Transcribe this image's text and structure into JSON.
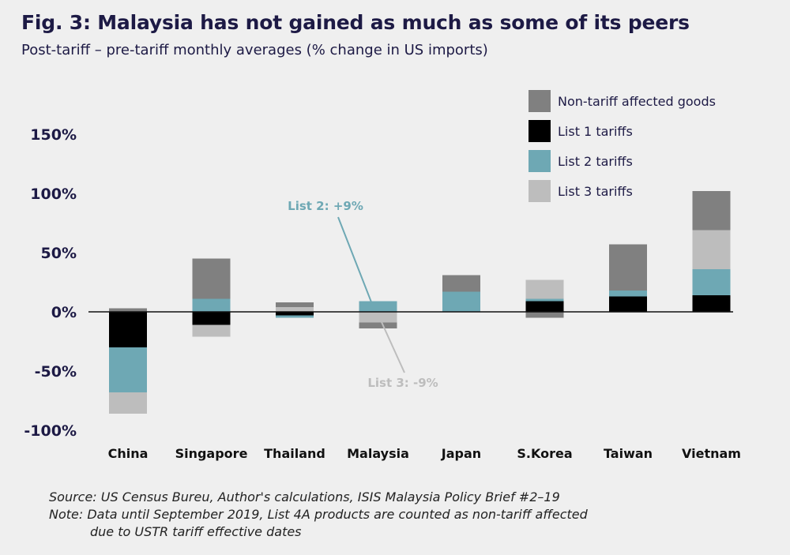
{
  "title": "Fig. 3: Malaysia has not gained as much as some of its peers",
  "subtitle": "Post-tariff – pre-tariff monthly averages (% change in US imports)",
  "chart_data": {
    "type": "bar",
    "stacked": true,
    "categories": [
      "China",
      "Singapore",
      "Thailand",
      "Malaysia",
      "Japan",
      "S.Korea",
      "Taiwan",
      "Vietnam"
    ],
    "series": [
      {
        "name": "Non-tariff affected goods",
        "color": "#808080",
        "values": [
          3,
          34,
          4,
          -5,
          14,
          -5,
          39,
          33
        ]
      },
      {
        "name": "List 1 tariffs",
        "color": "#000000",
        "values": [
          -30,
          -11,
          -3,
          0,
          0,
          9,
          13,
          14
        ]
      },
      {
        "name": "List 2 tariffs",
        "color": "#6ea8b4",
        "values": [
          -38,
          11,
          -2,
          9,
          17,
          2,
          5,
          22
        ]
      },
      {
        "name": "List 3 tariffs",
        "color": "#bdbdbd",
        "values": [
          -18,
          -10,
          4,
          -9,
          0,
          16,
          0,
          33
        ]
      }
    ],
    "yticks": [
      150,
      100,
      50,
      0,
      -50,
      -100
    ],
    "ytick_labels": [
      "150%",
      "100%",
      "50%",
      "0%",
      "-50%",
      "-100%"
    ],
    "ylim": [
      -100,
      150
    ],
    "legend_position": "top-right",
    "annotations": [
      {
        "text": "List 2: +9%",
        "category": "Malaysia",
        "color": "#6ea8b4"
      },
      {
        "text": "List 3: -9%",
        "category": "Malaysia",
        "color": "#bdbdbd"
      }
    ]
  },
  "notes": {
    "source": "Source: US Census Bureu, Author's calculations, ISIS Malaysia Policy Brief #2–19",
    "note_line1": "Note: Data until September 2019, List 4A products are counted as non-tariff affected",
    "note_line2": "due to USTR tariff effective dates"
  }
}
